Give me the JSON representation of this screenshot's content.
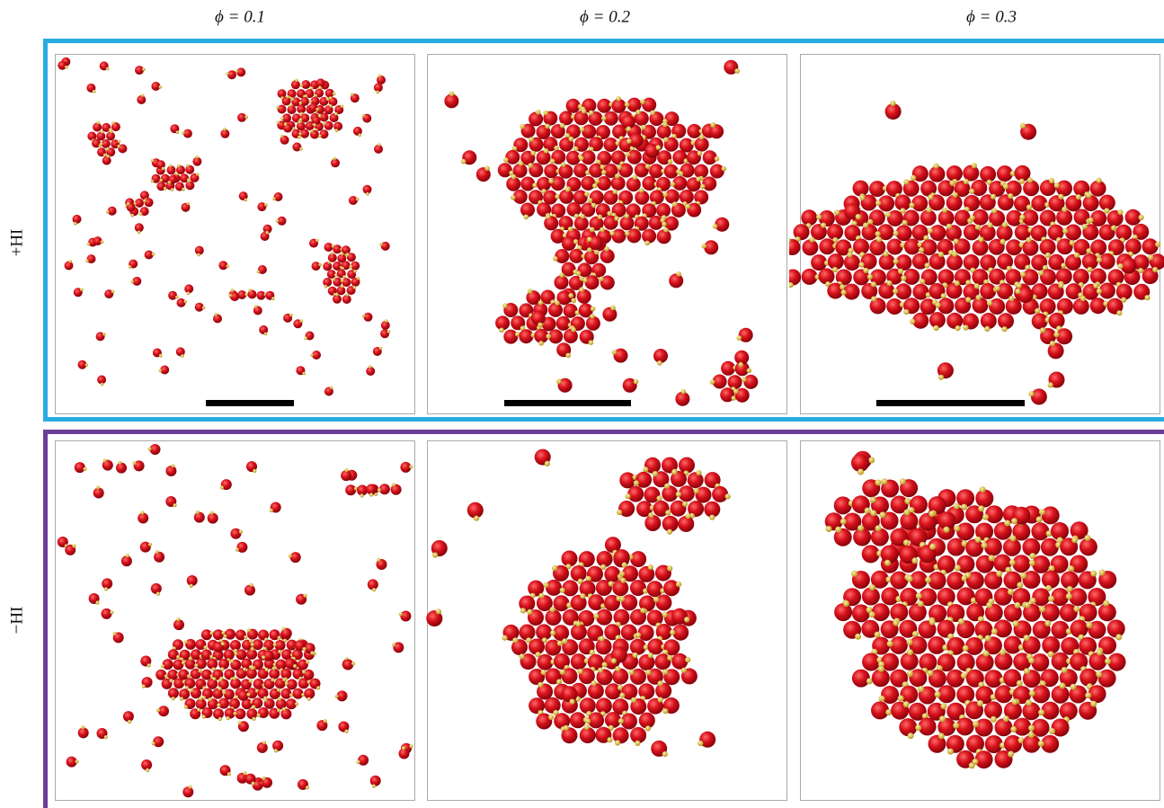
{
  "columns": [
    {
      "label": "ϕ = 0.1"
    },
    {
      "label": "ϕ = 0.2"
    },
    {
      "label": "ϕ = 0.3"
    }
  ],
  "rows": [
    {
      "label": "+HI"
    },
    {
      "label": "−HI"
    }
  ]
}
